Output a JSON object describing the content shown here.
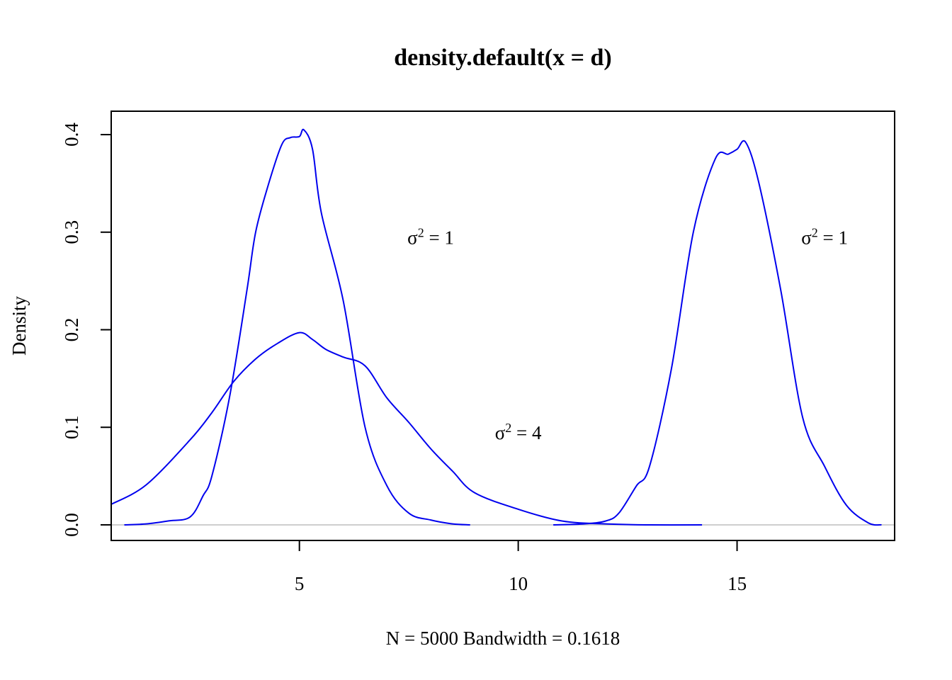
{
  "chart_data": {
    "type": "line",
    "title": "density.default(x = d)",
    "xlabel": "N = 5000   Bandwidth = 0.1618",
    "ylabel": "Density",
    "xlim": [
      0.7,
      18.6
    ],
    "ylim": [
      -0.016,
      0.424
    ],
    "x_ticks": [
      5,
      10,
      15
    ],
    "y_ticks": [
      0.0,
      0.1,
      0.2,
      0.3,
      0.4
    ],
    "x_tick_labels": [
      "5",
      "10",
      "15"
    ],
    "y_tick_labels": [
      "0.0",
      "0.1",
      "0.2",
      "0.3",
      "0.4"
    ],
    "zero_line": true,
    "grid": false,
    "legend": "none",
    "colors": {
      "series": "#0000ee",
      "zero_line": "#bebebe",
      "axes": "#000000"
    },
    "series": [
      {
        "x": [
          1.0,
          1.5,
          2.0,
          2.5,
          2.8,
          3.0,
          3.4,
          3.8,
          4.0,
          4.3,
          4.6,
          4.8,
          5.0,
          5.1,
          5.3,
          5.5,
          6.0,
          6.5,
          7.0,
          7.5,
          8.0,
          8.5,
          8.9
        ],
        "y": [
          0.0,
          0.001,
          0.004,
          0.008,
          0.03,
          0.05,
          0.13,
          0.24,
          0.3,
          0.35,
          0.39,
          0.397,
          0.398,
          0.405,
          0.385,
          0.32,
          0.23,
          0.1,
          0.04,
          0.012,
          0.005,
          0.001,
          0.0
        ]
      },
      {
        "x": [
          0.7,
          1.5,
          2.5,
          3.0,
          3.5,
          4.0,
          4.5,
          5.0,
          5.3,
          5.6,
          6.0,
          6.5,
          7.0,
          7.5,
          8.0,
          8.5,
          9.0,
          10.0,
          11.0,
          12.0,
          13.0,
          14.2
        ],
        "y": [
          0.021,
          0.041,
          0.087,
          0.115,
          0.147,
          0.17,
          0.186,
          0.197,
          0.19,
          0.18,
          0.172,
          0.163,
          0.13,
          0.105,
          0.078,
          0.055,
          0.033,
          0.016,
          0.004,
          0.001,
          0.0,
          0.0
        ]
      },
      {
        "x": [
          10.8,
          11.5,
          12.0,
          12.3,
          12.7,
          13.0,
          13.5,
          14.0,
          14.5,
          14.8,
          15.0,
          15.2,
          15.5,
          16.0,
          16.5,
          17.0,
          17.5,
          18.0,
          18.3
        ],
        "y": [
          0.0,
          0.001,
          0.004,
          0.012,
          0.04,
          0.06,
          0.16,
          0.3,
          0.375,
          0.38,
          0.385,
          0.392,
          0.35,
          0.24,
          0.11,
          0.06,
          0.02,
          0.002,
          0.0
        ]
      }
    ],
    "annotations": [
      {
        "base": "σ",
        "sup": "2",
        "rest": " = 1",
        "x": 8.0,
        "y": 0.295
      },
      {
        "base": "σ",
        "sup": "2",
        "rest": " = 1",
        "x": 17.0,
        "y": 0.295
      },
      {
        "base": "σ",
        "sup": "2",
        "rest": " = 4",
        "x": 10.0,
        "y": 0.095
      }
    ]
  }
}
